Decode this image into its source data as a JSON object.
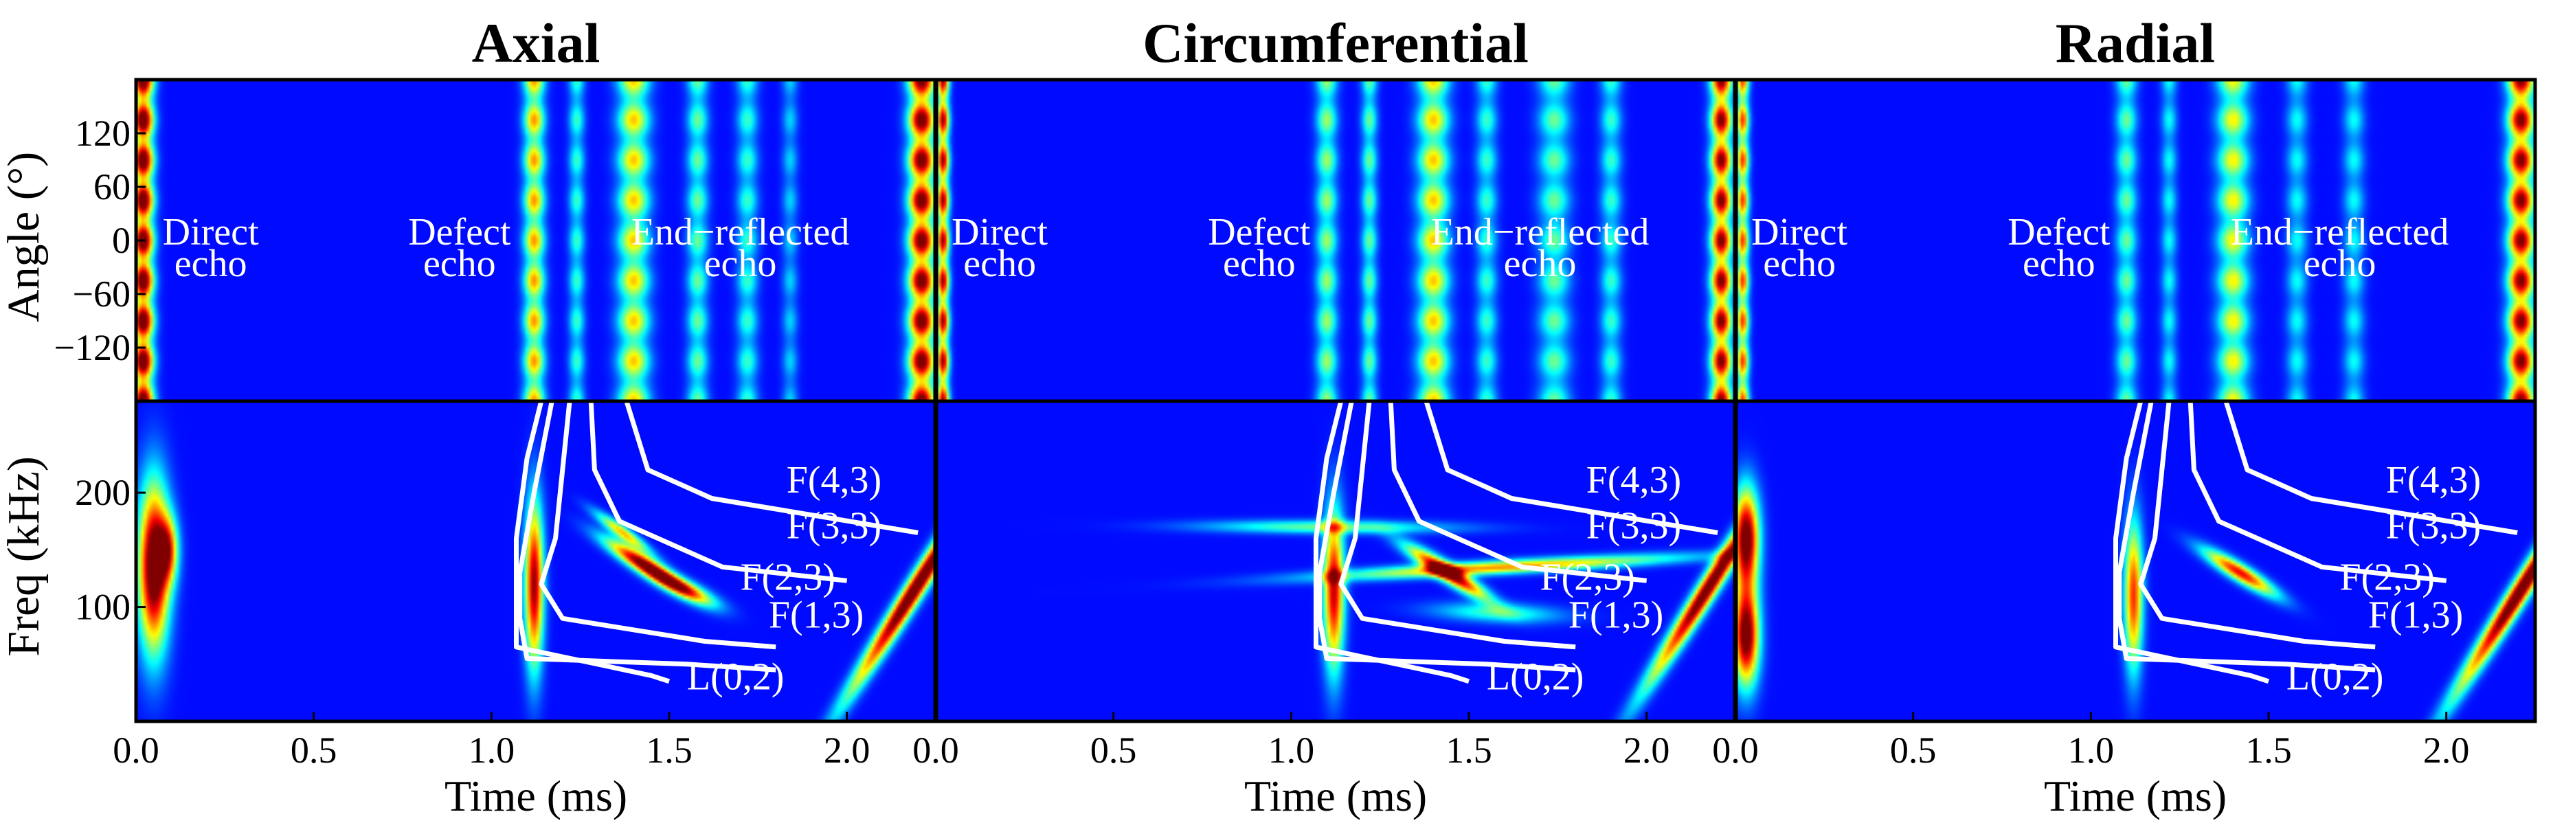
{
  "figure": {
    "columns": [
      "Axial",
      "Circumferential",
      "Radial"
    ],
    "y_label_top": "Angle (°)",
    "y_label_bottom": "Freq (kHz)",
    "x_label": "Time (ms)"
  },
  "chart_data": [
    {
      "type": "heatmap",
      "title": "Axial",
      "panel": "top",
      "xlabel": "Time (ms)",
      "ylabel": "Angle (°)",
      "xlim": [
        0.0,
        2.25
      ],
      "ylim": [
        -180,
        180
      ],
      "yticks": [
        "120",
        "60",
        "0",
        "−60",
        "−120"
      ],
      "ytick_values": [
        120,
        60,
        0,
        -60,
        -120
      ],
      "annotations": [
        {
          "lines": [
            "Direct",
            "echo"
          ],
          "x": 0.21
        },
        {
          "lines": [
            "Defect",
            "echo"
          ],
          "x": 0.91
        },
        {
          "lines": [
            "End−reflected",
            "echo"
          ],
          "x": 1.7
        }
      ],
      "bands": [
        {
          "t": 0.02,
          "w": 0.02,
          "level": 1.0
        },
        {
          "t": 1.12,
          "w": 0.02,
          "level": 0.6
        },
        {
          "t": 1.24,
          "w": 0.015,
          "level": 0.3
        },
        {
          "t": 1.4,
          "w": 0.03,
          "level": 0.55
        },
        {
          "t": 1.58,
          "w": 0.02,
          "level": 0.35
        },
        {
          "t": 1.72,
          "w": 0.02,
          "level": 0.3
        },
        {
          "t": 1.84,
          "w": 0.015,
          "level": 0.2
        },
        {
          "t": 2.21,
          "w": 0.025,
          "level": 0.95
        }
      ]
    },
    {
      "type": "heatmap",
      "title": "Circumferential",
      "panel": "top",
      "xlabel": "Time (ms)",
      "ylabel": "Angle (°)",
      "xlim": [
        0.0,
        2.25
      ],
      "ylim": [
        -180,
        180
      ],
      "annotations": [
        {
          "lines": [
            "Direct",
            "echo"
          ],
          "x": 0.18
        },
        {
          "lines": [
            "Defect",
            "echo"
          ],
          "x": 0.91
        },
        {
          "lines": [
            "End−reflected",
            "echo"
          ],
          "x": 1.7
        }
      ],
      "bands": [
        {
          "t": 0.02,
          "w": 0.012,
          "level": 0.85
        },
        {
          "t": 1.1,
          "w": 0.02,
          "level": 0.4
        },
        {
          "t": 1.22,
          "w": 0.015,
          "level": 0.35
        },
        {
          "t": 1.4,
          "w": 0.03,
          "level": 0.55
        },
        {
          "t": 1.55,
          "w": 0.02,
          "level": 0.3
        },
        {
          "t": 1.74,
          "w": 0.03,
          "level": 0.35
        },
        {
          "t": 1.9,
          "w": 0.02,
          "level": 0.3
        },
        {
          "t": 2.21,
          "w": 0.02,
          "level": 0.9
        }
      ]
    },
    {
      "type": "heatmap",
      "title": "Radial",
      "panel": "top",
      "xlabel": "Time (ms)",
      "ylabel": "Angle (°)",
      "xlim": [
        0.0,
        2.25
      ],
      "ylim": [
        -180,
        180
      ],
      "annotations": [
        {
          "lines": [
            "Direct",
            "echo"
          ],
          "x": 0.18
        },
        {
          "lines": [
            "Defect",
            "echo"
          ],
          "x": 0.91
        },
        {
          "lines": [
            "End−reflected",
            "echo"
          ],
          "x": 1.7
        }
      ],
      "bands": [
        {
          "t": 0.02,
          "w": 0.012,
          "level": 0.7
        },
        {
          "t": 1.1,
          "w": 0.02,
          "level": 0.35
        },
        {
          "t": 1.22,
          "w": 0.015,
          "level": 0.25
        },
        {
          "t": 1.4,
          "w": 0.03,
          "level": 0.5
        },
        {
          "t": 1.58,
          "w": 0.02,
          "level": 0.25
        },
        {
          "t": 1.74,
          "w": 0.02,
          "level": 0.25
        },
        {
          "t": 2.21,
          "w": 0.025,
          "level": 0.9
        }
      ]
    },
    {
      "type": "heatmap",
      "title": "Axial",
      "panel": "bottom",
      "xlabel": "Time (ms)",
      "ylabel": "Freq (kHz)",
      "xlim": [
        0.0,
        2.25
      ],
      "ylim": [
        0,
        280
      ],
      "xticks": [
        "0.0",
        "0.5",
        "1.0",
        "1.5",
        "2.0"
      ],
      "xtick_values": [
        0.0,
        0.5,
        1.0,
        1.5,
        2.0
      ],
      "yticks": [
        "200",
        "100"
      ],
      "ytick_values": [
        200,
        100
      ],
      "modes": [
        {
          "label": "F(4,3)",
          "points": [
            [
              1.38,
              280
            ],
            [
              1.44,
              220
            ],
            [
              1.62,
              195
            ],
            [
              2.2,
              165
            ]
          ],
          "label_at": [
            1.83,
            200
          ]
        },
        {
          "label": "F(3,3)",
          "points": [
            [
              1.28,
              280
            ],
            [
              1.29,
              220
            ],
            [
              1.36,
              175
            ],
            [
              1.65,
              135
            ],
            [
              2.0,
              123
            ]
          ],
          "label_at": [
            1.83,
            160
          ]
        },
        {
          "label": "F(2,3)",
          "points": [
            [
              1.22,
              280
            ],
            [
              1.2,
              220
            ],
            [
              1.18,
              160
            ],
            [
              1.14,
              120
            ],
            [
              1.2,
              90
            ],
            [
              1.6,
              70
            ],
            [
              1.8,
              65
            ]
          ],
          "label_at": [
            1.7,
            115
          ]
        },
        {
          "label": "F(1,3)",
          "points": [
            [
              1.17,
              280
            ],
            [
              1.12,
              200
            ],
            [
              1.08,
              130
            ],
            [
              1.08,
              90
            ],
            [
              1.1,
              55
            ],
            [
              1.55,
              50
            ],
            [
              1.8,
              45
            ]
          ],
          "label_at": [
            1.78,
            82
          ]
        },
        {
          "label": "L(0,2)",
          "points": [
            [
              1.14,
              280
            ],
            [
              1.1,
              230
            ],
            [
              1.07,
              160
            ],
            [
              1.07,
              110
            ],
            [
              1.07,
              65
            ],
            [
              1.45,
              40
            ],
            [
              1.5,
              35
            ]
          ],
          "label_at": [
            1.55,
            28
          ]
        }
      ],
      "blobs": [
        {
          "t": 0.05,
          "f": 135,
          "st": 0.03,
          "sf": 50,
          "amp": 1.0
        },
        {
          "t": 0.09,
          "f": 150,
          "st": 0.02,
          "sf": 20,
          "amp": 0.55
        },
        {
          "t": 1.12,
          "f": 120,
          "st": 0.018,
          "sf": 50,
          "amp": 0.85
        },
        {
          "t": 1.44,
          "f": 135,
          "st": 0.03,
          "sf": 16,
          "amp": 0.95,
          "slope": -220
        },
        {
          "t": 1.37,
          "f": 165,
          "st": 0.02,
          "sf": 12,
          "amp": 0.55,
          "slope": -250
        },
        {
          "t": 1.55,
          "f": 115,
          "st": 0.035,
          "sf": 10,
          "amp": 0.5,
          "slope": -200
        },
        {
          "t": 2.2,
          "f": 120,
          "st": 0.022,
          "sf": 65,
          "amp": 1.0,
          "slope": 500
        }
      ]
    },
    {
      "type": "heatmap",
      "title": "Circumferential",
      "panel": "bottom",
      "xlabel": "Time (ms)",
      "ylabel": "Freq (kHz)",
      "xlim": [
        0.0,
        2.25
      ],
      "ylim": [
        0,
        280
      ],
      "xticks": [
        "0.0",
        "0.5",
        "1.0",
        "1.5",
        "2.0"
      ],
      "xtick_values": [
        0.0,
        0.5,
        1.0,
        1.5,
        2.0
      ],
      "modes": [
        {
          "label": "F(4,3)",
          "points": [
            [
              1.38,
              280
            ],
            [
              1.44,
              220
            ],
            [
              1.62,
              195
            ],
            [
              2.2,
              165
            ]
          ],
          "label_at": [
            1.83,
            200
          ]
        },
        {
          "label": "F(3,3)",
          "points": [
            [
              1.28,
              280
            ],
            [
              1.29,
              220
            ],
            [
              1.36,
              175
            ],
            [
              1.65,
              135
            ],
            [
              2.0,
              123
            ]
          ],
          "label_at": [
            1.83,
            160
          ]
        },
        {
          "label": "F(2,3)",
          "points": [
            [
              1.22,
              280
            ],
            [
              1.2,
              220
            ],
            [
              1.18,
              160
            ],
            [
              1.14,
              120
            ],
            [
              1.2,
              90
            ],
            [
              1.6,
              70
            ],
            [
              1.8,
              65
            ]
          ],
          "label_at": [
            1.7,
            115
          ]
        },
        {
          "label": "F(1,3)",
          "points": [
            [
              1.17,
              280
            ],
            [
              1.12,
              200
            ],
            [
              1.08,
              130
            ],
            [
              1.08,
              90
            ],
            [
              1.1,
              55
            ],
            [
              1.55,
              50
            ],
            [
              1.8,
              45
            ]
          ],
          "label_at": [
            1.78,
            82
          ]
        },
        {
          "label": "L(0,2)",
          "points": [
            [
              1.14,
              280
            ],
            [
              1.1,
              230
            ],
            [
              1.07,
              160
            ],
            [
              1.07,
              110
            ],
            [
              1.07,
              65
            ],
            [
              1.45,
              40
            ],
            [
              1.5,
              35
            ]
          ],
          "label_at": [
            1.55,
            28
          ]
        }
      ],
      "blobs": [
        {
          "t": 1.12,
          "f": 115,
          "st": 0.02,
          "sf": 48,
          "amp": 0.8
        },
        {
          "t": 1.44,
          "f": 130,
          "st": 0.03,
          "sf": 16,
          "amp": 0.9,
          "slope": -220
        },
        {
          "t": 1.6,
          "f": 135,
          "st": 0.2,
          "sf": 7,
          "amp": 0.6,
          "slope": 25
        },
        {
          "t": 1.1,
          "f": 170,
          "st": 0.24,
          "sf": 4,
          "amp": 0.35,
          "slope": -150
        },
        {
          "t": 1.58,
          "f": 95,
          "st": 0.12,
          "sf": 6,
          "amp": 0.3,
          "slope": -180
        },
        {
          "t": 2.18,
          "f": 120,
          "st": 0.022,
          "sf": 60,
          "amp": 0.95,
          "slope": 500
        }
      ]
    },
    {
      "type": "heatmap",
      "title": "Radial",
      "panel": "bottom",
      "xlabel": "Time (ms)",
      "ylabel": "Freq (kHz)",
      "xlim": [
        0.0,
        2.25
      ],
      "ylim": [
        0,
        280
      ],
      "xticks": [
        "0.0",
        "0.5",
        "1.0",
        "1.5",
        "2.0"
      ],
      "xtick_values": [
        0.0,
        0.5,
        1.0,
        1.5,
        2.0
      ],
      "modes": [
        {
          "label": "F(4,3)",
          "points": [
            [
              1.38,
              280
            ],
            [
              1.44,
              220
            ],
            [
              1.62,
              195
            ],
            [
              2.2,
              165
            ]
          ],
          "label_at": [
            1.83,
            200
          ]
        },
        {
          "label": "F(3,3)",
          "points": [
            [
              1.28,
              280
            ],
            [
              1.29,
              220
            ],
            [
              1.36,
              175
            ],
            [
              1.65,
              135
            ],
            [
              2.0,
              123
            ]
          ],
          "label_at": [
            1.83,
            160
          ]
        },
        {
          "label": "F(2,3)",
          "points": [
            [
              1.22,
              280
            ],
            [
              1.2,
              220
            ],
            [
              1.18,
              160
            ],
            [
              1.14,
              120
            ],
            [
              1.2,
              90
            ],
            [
              1.6,
              70
            ],
            [
              1.8,
              65
            ]
          ],
          "label_at": [
            1.7,
            115
          ]
        },
        {
          "label": "F(1,3)",
          "points": [
            [
              1.17,
              280
            ],
            [
              1.12,
              200
            ],
            [
              1.08,
              130
            ],
            [
              1.08,
              90
            ],
            [
              1.1,
              55
            ],
            [
              1.55,
              50
            ],
            [
              1.8,
              45
            ]
          ],
          "label_at": [
            1.78,
            82
          ]
        },
        {
          "label": "L(0,2)",
          "points": [
            [
              1.14,
              280
            ],
            [
              1.1,
              230
            ],
            [
              1.07,
              160
            ],
            [
              1.07,
              110
            ],
            [
              1.07,
              65
            ],
            [
              1.45,
              40
            ],
            [
              1.5,
              35
            ]
          ],
          "label_at": [
            1.55,
            28
          ]
        }
      ],
      "blobs": [
        {
          "t": 0.03,
          "f": 160,
          "st": 0.025,
          "sf": 30,
          "amp": 0.95
        },
        {
          "t": 0.03,
          "f": 75,
          "st": 0.025,
          "sf": 30,
          "amp": 0.95
        },
        {
          "t": 1.12,
          "f": 110,
          "st": 0.018,
          "sf": 45,
          "amp": 0.7
        },
        {
          "t": 1.42,
          "f": 130,
          "st": 0.03,
          "sf": 14,
          "amp": 0.75,
          "slope": -220
        },
        {
          "t": 2.22,
          "f": 120,
          "st": 0.022,
          "sf": 65,
          "amp": 1.0,
          "slope": 500
        }
      ]
    }
  ]
}
